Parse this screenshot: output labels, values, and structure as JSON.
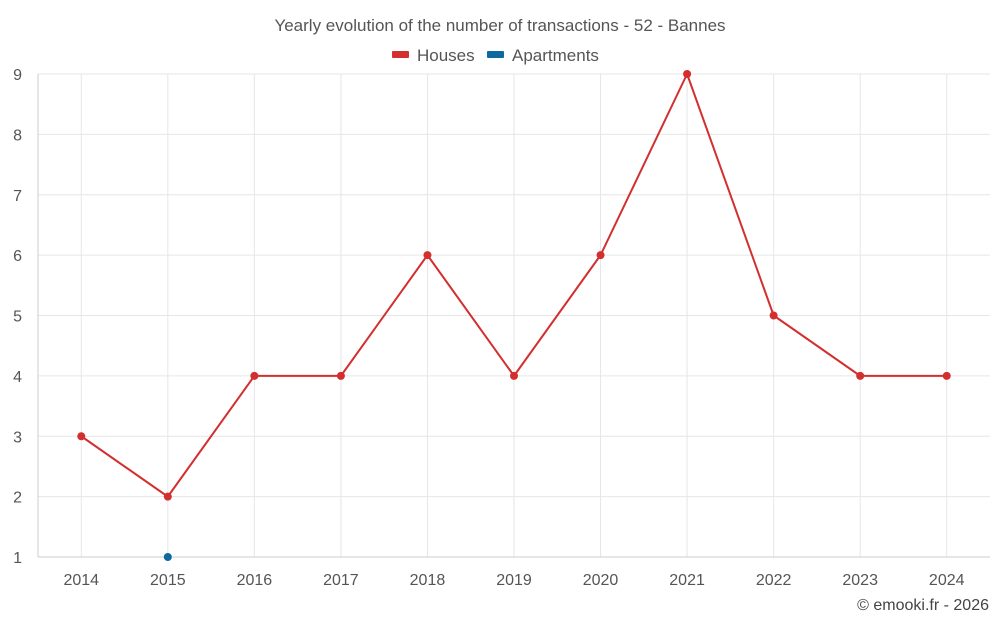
{
  "chart_data": {
    "type": "line",
    "title": "Yearly evolution of the number of transactions - 52 - Bannes",
    "categories": [
      "2014",
      "2015",
      "2016",
      "2017",
      "2018",
      "2019",
      "2020",
      "2021",
      "2022",
      "2023",
      "2024"
    ],
    "series": [
      {
        "name": "Houses",
        "color": "#d32f2f",
        "values": [
          3,
          2,
          4,
          4,
          6,
          4,
          6,
          9,
          5,
          4,
          4
        ]
      },
      {
        "name": "Apartments",
        "color": "#0d6aa1",
        "values": [
          null,
          1,
          null,
          null,
          null,
          null,
          null,
          null,
          null,
          null,
          null
        ]
      }
    ],
    "ylim": [
      1,
      9
    ],
    "yticks": [
      "1",
      "2",
      "3",
      "4",
      "5",
      "6",
      "7",
      "8",
      "9"
    ],
    "legend_position": "top-center",
    "xlabel": "",
    "ylabel": "",
    "grid": true
  },
  "credit": "© emooki.fr - 2026"
}
